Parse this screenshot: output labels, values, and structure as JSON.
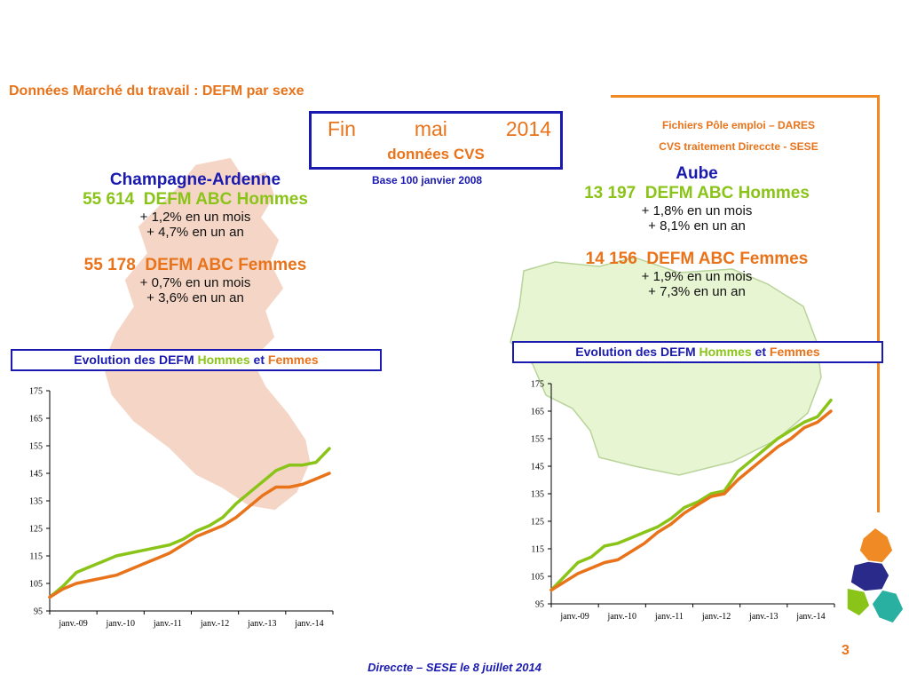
{
  "title": "Données Marché du travail : DEFM par sexe",
  "period": {
    "word1": "Fin",
    "word2": "mai",
    "word3": "2014",
    "subtitle": "données CVS"
  },
  "base_note": "Base 100 janvier 2008",
  "sources": {
    "line1": "Fichiers Pôle emploi – DARES",
    "line2": "CVS traitement Direccte - SESE"
  },
  "left": {
    "region": "Champagne-Ardenne",
    "men": {
      "count": "55 614",
      "label": "DEFM ABC Hommes",
      "month": "+ 1,2% en un mois",
      "year": "+ 4,7% en un an"
    },
    "women": {
      "count": "55 178",
      "label": "DEFM ABC Femmes",
      "month": "+ 0,7% en un mois",
      "year": "+ 3,6% en un an"
    },
    "evo": {
      "prefix": "Evolution des DEFM",
      "men": "Hommes",
      "and": "et",
      "women": "Femmes"
    }
  },
  "right": {
    "region": "Aube",
    "men": {
      "count": "13 197",
      "label": "DEFM ABC Hommes",
      "month": "+ 1,8% en un mois",
      "year": "+ 8,1% en un an"
    },
    "women": {
      "count": "14 156",
      "label": "DEFM ABC Femmes",
      "month": "+ 1,9% en un mois",
      "year": "+ 7,3% en un an"
    },
    "evo": {
      "prefix": "Evolution des DEFM",
      "men": "Hommes",
      "and": "et",
      "women": "Femmes"
    }
  },
  "footer": "Direccte – SESE le 8 juillet 2014",
  "page_number": "3",
  "colors": {
    "hommes": "#8ac418",
    "femmes": "#e8731a",
    "accent_blue": "#1a1ab0",
    "frame_orange": "#f08a24"
  },
  "chart_data": [
    {
      "type": "line",
      "xlabels": [
        "janv.-09",
        "janv.-10",
        "janv.-11",
        "janv.-12",
        "janv.-13",
        "janv.-14"
      ],
      "yticks": [
        95,
        105,
        115,
        125,
        135,
        145,
        155,
        165,
        175
      ],
      "ylim": [
        95,
        175
      ],
      "x_start": "janv.-08",
      "x_end": "mai-14",
      "series": [
        {
          "name": "Hommes",
          "color": "#8ac418",
          "values": [
            100,
            104,
            109,
            111,
            113,
            115,
            116,
            117,
            118,
            119,
            121,
            124,
            126,
            129,
            134,
            138,
            142,
            146,
            148,
            148,
            149,
            154
          ]
        },
        {
          "name": "Femmes",
          "color": "#e8731a",
          "values": [
            100,
            103,
            105,
            106,
            107,
            108,
            110,
            112,
            114,
            116,
            119,
            122,
            124,
            126,
            129,
            133,
            137,
            140,
            140,
            141,
            143,
            145
          ]
        }
      ]
    },
    {
      "type": "line",
      "xlabels": [
        "janv.-09",
        "janv.-10",
        "janv.-11",
        "janv.-12",
        "janv.-13",
        "janv.-14"
      ],
      "yticks": [
        95,
        105,
        115,
        125,
        135,
        145,
        155,
        165,
        175
      ],
      "ylim": [
        95,
        175
      ],
      "x_start": "janv.-08",
      "x_end": "mai-14",
      "series": [
        {
          "name": "Hommes",
          "color": "#8ac418",
          "values": [
            100,
            105,
            110,
            112,
            116,
            117,
            119,
            121,
            123,
            126,
            130,
            132,
            135,
            136,
            143,
            147,
            151,
            155,
            158,
            161,
            163,
            169
          ]
        },
        {
          "name": "Femmes",
          "color": "#e8731a",
          "values": [
            100,
            103,
            106,
            108,
            110,
            111,
            114,
            117,
            121,
            124,
            128,
            131,
            134,
            135,
            140,
            144,
            148,
            152,
            155,
            159,
            161,
            165
          ]
        }
      ]
    }
  ]
}
